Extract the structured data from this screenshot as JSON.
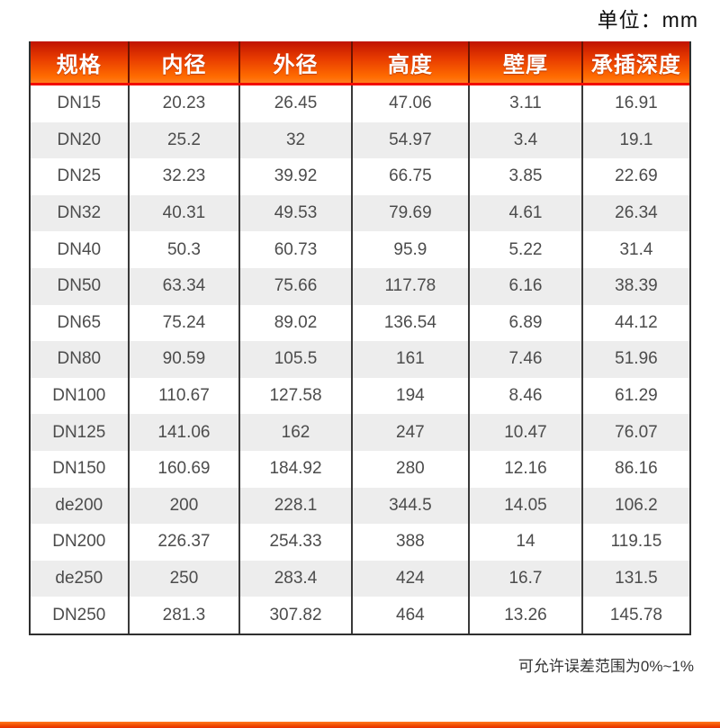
{
  "header": {
    "unit_label": "单位：mm"
  },
  "footer": {
    "note": "可允许误差范围为0%~1%"
  },
  "colors": {
    "header_gradient_top": "#c01300",
    "header_gradient_bottom": "#ff7d1e",
    "header_underline_red": "#f20c00",
    "row_alt_gray": "#ededed",
    "border_dark": "#2f2f2f",
    "column_separator": "#3a3a3a",
    "header_text": "#ffffff",
    "body_text": "#4c4c4c",
    "bottom_bar_orange": "#f04a00"
  },
  "chart_data": {
    "type": "table",
    "unit": "mm",
    "columns": [
      "规格",
      "内径",
      "外径",
      "高度",
      "壁厚",
      "承插深度"
    ],
    "rows": [
      [
        "DN15",
        20.23,
        26.45,
        47.06,
        3.11,
        16.91
      ],
      [
        "DN20",
        25.2,
        32,
        54.97,
        3.4,
        19.1
      ],
      [
        "DN25",
        32.23,
        39.92,
        66.75,
        3.85,
        22.69
      ],
      [
        "DN32",
        40.31,
        49.53,
        79.69,
        4.61,
        26.34
      ],
      [
        "DN40",
        50.3,
        60.73,
        95.9,
        5.22,
        31.4
      ],
      [
        "DN50",
        63.34,
        75.66,
        117.78,
        6.16,
        38.39
      ],
      [
        "DN65",
        75.24,
        89.02,
        136.54,
        6.89,
        44.12
      ],
      [
        "DN80",
        90.59,
        105.5,
        161,
        7.46,
        51.96
      ],
      [
        "DN100",
        110.67,
        127.58,
        194,
        8.46,
        61.29
      ],
      [
        "DN125",
        141.06,
        162,
        247,
        10.47,
        76.07
      ],
      [
        "DN150",
        160.69,
        184.92,
        280,
        12.16,
        86.16
      ],
      [
        "de200",
        200,
        228.1,
        344.5,
        14.05,
        106.2
      ],
      [
        "DN200",
        226.37,
        254.33,
        388,
        14,
        119.15
      ],
      [
        "de250",
        250,
        283.4,
        424,
        16.7,
        131.5
      ],
      [
        "DN250",
        281.3,
        307.82,
        464,
        13.26,
        145.78
      ]
    ],
    "note": "可允许误差范围为0%~1%",
    "layout": "header row orange gradient, zebra striped body rows, all cells centered"
  }
}
